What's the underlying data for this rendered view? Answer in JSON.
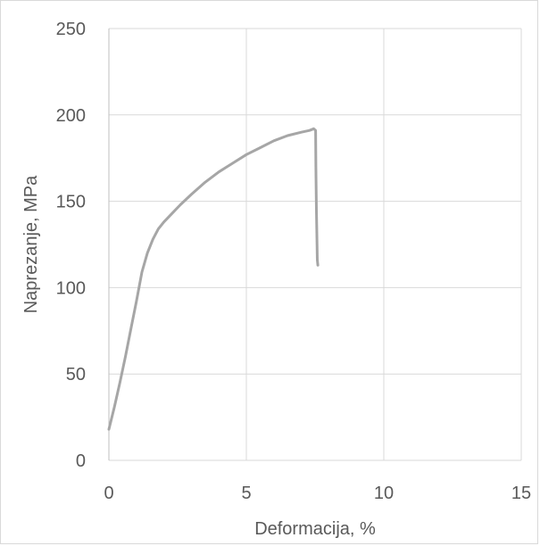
{
  "chart_data": {
    "type": "line",
    "title": "",
    "xlabel": "Deformacija, %",
    "ylabel": "Naprezanje, MPa",
    "xlim": [
      0,
      15
    ],
    "ylim": [
      0,
      250
    ],
    "x_ticks": [
      "0",
      "5",
      "10",
      "15"
    ],
    "y_ticks": [
      "0",
      "50",
      "100",
      "150",
      "200",
      "250"
    ],
    "grid": true,
    "legend": "none",
    "line_color": "#a6a6a6",
    "series": [
      {
        "x": [
          0,
          0.2,
          0.4,
          0.6,
          0.8,
          1.0,
          1.2,
          1.4,
          1.6,
          1.8,
          2.0,
          2.3,
          2.6,
          3.0,
          3.5,
          4.0,
          4.5,
          5.0,
          5.5,
          6.0,
          6.5,
          7.0,
          7.3,
          7.45,
          7.52,
          7.53,
          7.55,
          7.57,
          7.58,
          7.6
        ],
        "y": [
          18,
          31,
          45,
          60,
          76,
          92,
          109,
          120,
          128,
          134,
          138,
          143,
          148,
          154,
          161,
          167,
          172,
          177,
          181,
          185,
          188,
          190,
          191,
          192,
          191,
          170,
          145,
          125,
          116,
          113
        ]
      }
    ]
  }
}
